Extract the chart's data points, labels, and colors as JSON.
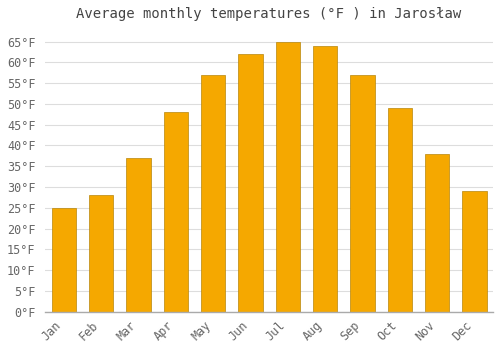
{
  "title": "Average monthly temperatures (°F ) in Jarosław",
  "months": [
    "Jan",
    "Feb",
    "Mar",
    "Apr",
    "May",
    "Jun",
    "Jul",
    "Aug",
    "Sep",
    "Oct",
    "Nov",
    "Dec"
  ],
  "values": [
    25,
    28,
    37,
    48,
    57,
    62,
    65,
    64,
    57,
    49,
    38,
    29
  ],
  "bar_color_top": "#FFC020",
  "bar_color_bottom": "#F5A800",
  "bar_edge_color": "#B8860B",
  "background_color": "#FFFFFF",
  "grid_color": "#DDDDDD",
  "ylim": [
    0,
    68
  ],
  "yticks": [
    0,
    5,
    10,
    15,
    20,
    25,
    30,
    35,
    40,
    45,
    50,
    55,
    60,
    65
  ],
  "title_fontsize": 10,
  "tick_fontsize": 8.5,
  "title_color": "#444444",
  "tick_color": "#666666",
  "font_family": "monospace"
}
